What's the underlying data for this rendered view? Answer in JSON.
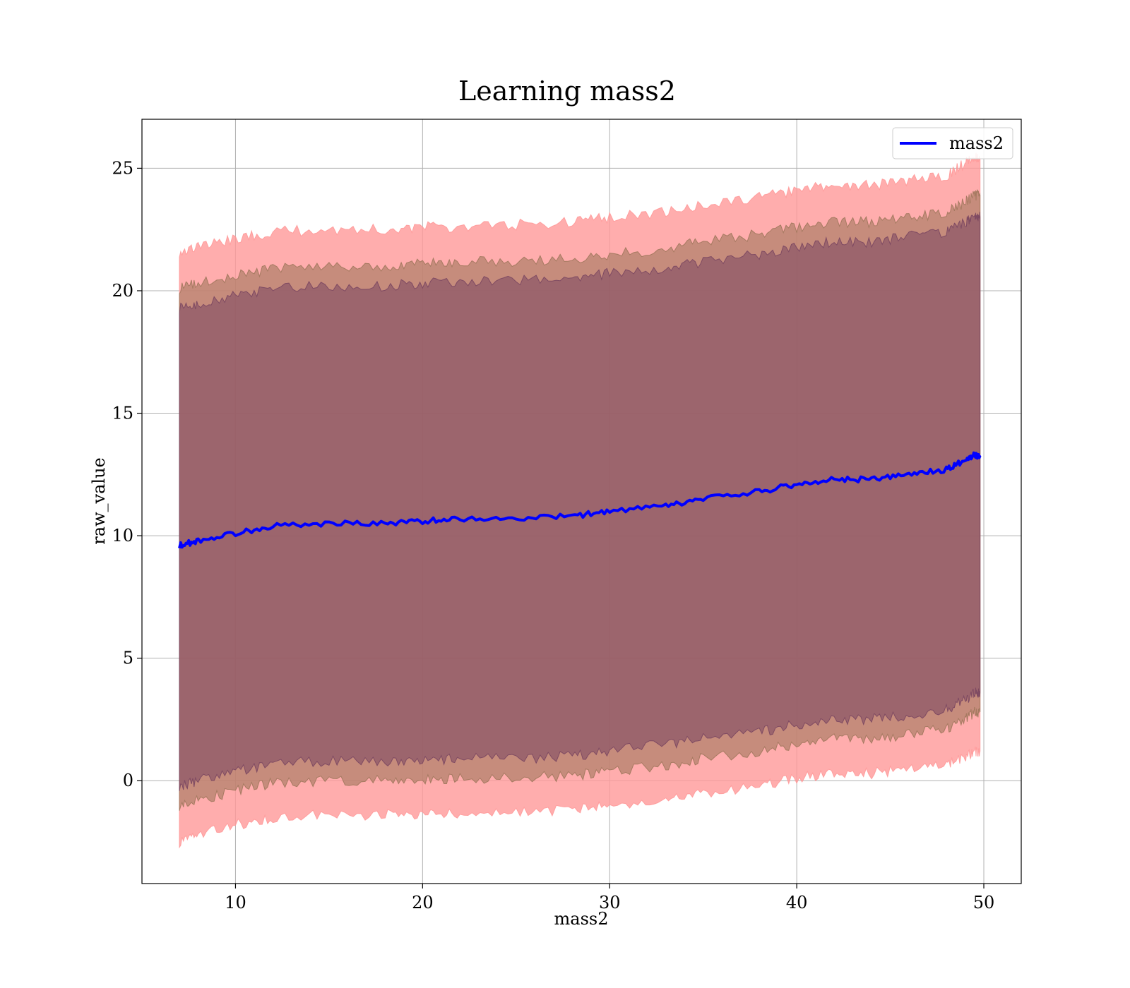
{
  "chart_data": {
    "type": "area",
    "title": "Learning mass2",
    "xlabel": "mass2",
    "ylabel": "raw_value",
    "xlim": [
      5,
      52
    ],
    "ylim": [
      -4.2,
      27
    ],
    "xticks": [
      10,
      20,
      30,
      40,
      50
    ],
    "yticks": [
      0,
      5,
      10,
      15,
      20,
      25
    ],
    "grid": true,
    "legend": {
      "placement": "top-right",
      "entries": [
        {
          "name": "mass2",
          "color": "#0000ff"
        }
      ]
    },
    "x": [
      7,
      8,
      10,
      12,
      15,
      18,
      20,
      22,
      25,
      28,
      30,
      33,
      35,
      38,
      40,
      42,
      44,
      46,
      48,
      49,
      49.5,
      49.8
    ],
    "series": [
      {
        "name": "mass2",
        "kind": "line",
        "color": "#0000ff",
        "values": [
          9.6,
          9.8,
          10.1,
          10.4,
          10.5,
          10.5,
          10.6,
          10.7,
          10.7,
          10.8,
          11.0,
          11.2,
          11.5,
          11.8,
          12.1,
          12.3,
          12.3,
          12.5,
          12.7,
          13.1,
          13.3,
          13.2
        ]
      },
      {
        "kind": "band",
        "color": "#ff9999",
        "opacity": 0.8,
        "lower": [
          -2.5,
          -2.2,
          -1.8,
          -1.5,
          -1.4,
          -1.4,
          -1.4,
          -1.3,
          -1.3,
          -1.2,
          -1.0,
          -0.8,
          -0.5,
          -0.2,
          0.1,
          0.3,
          0.3,
          0.5,
          0.7,
          1.0,
          1.2,
          1.2
        ],
        "upper": [
          21.6,
          21.8,
          22.1,
          22.4,
          22.5,
          22.5,
          22.6,
          22.6,
          22.7,
          22.8,
          23.0,
          23.2,
          23.5,
          23.8,
          24.1,
          24.3,
          24.3,
          24.5,
          24.7,
          25.2,
          25.5,
          25.4
        ]
      },
      {
        "kind": "band",
        "color": "#a0775c",
        "opacity": 0.6,
        "lower": [
          -1.0,
          -0.8,
          -0.4,
          -0.1,
          0.0,
          0.0,
          0.0,
          0.1,
          0.1,
          0.2,
          0.4,
          0.6,
          0.9,
          1.2,
          1.5,
          1.7,
          1.7,
          1.9,
          2.1,
          2.5,
          2.8,
          2.8
        ],
        "upper": [
          20.1,
          20.3,
          20.6,
          20.9,
          21.0,
          21.0,
          21.1,
          21.2,
          21.2,
          21.3,
          21.5,
          21.7,
          22.0,
          22.3,
          22.6,
          22.8,
          22.8,
          23.0,
          23.2,
          23.6,
          23.9,
          23.9
        ]
      },
      {
        "kind": "band",
        "color": "#7a4660",
        "opacity": 0.55,
        "lower": [
          -0.2,
          0.0,
          0.4,
          0.7,
          0.8,
          0.8,
          0.8,
          0.9,
          0.9,
          1.0,
          1.2,
          1.5,
          1.7,
          2.0,
          2.3,
          2.5,
          2.5,
          2.7,
          2.9,
          3.3,
          3.6,
          3.6
        ],
        "upper": [
          19.3,
          19.5,
          19.8,
          20.1,
          20.2,
          20.2,
          20.3,
          20.4,
          20.4,
          20.5,
          20.7,
          20.9,
          21.2,
          21.5,
          21.8,
          22.0,
          22.0,
          22.2,
          22.4,
          22.8,
          23.1,
          23.0
        ]
      }
    ]
  }
}
